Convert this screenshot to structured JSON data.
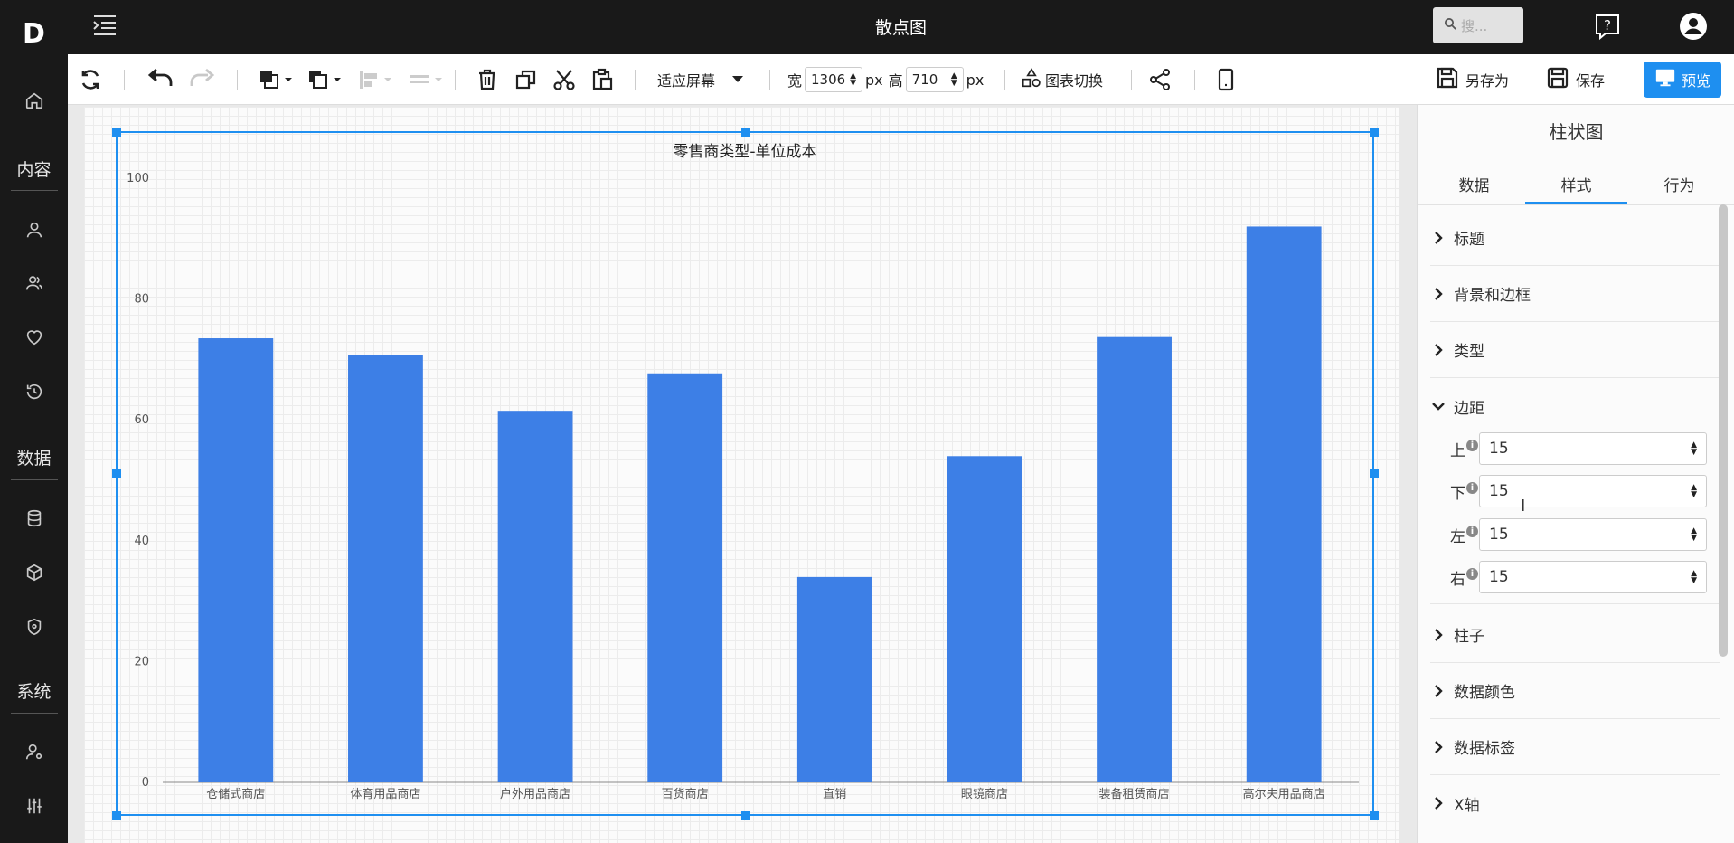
{
  "app": {
    "logo_text": "D",
    "title": "散点图",
    "search_placeholder": "搜..."
  },
  "sidebar": {
    "sections": [
      {
        "label": "内容"
      },
      {
        "label": "数据"
      },
      {
        "label": "系统"
      }
    ],
    "icons": [
      "home-icon",
      "user-icon",
      "users-icon",
      "heart-icon",
      "history-icon",
      "database-icon",
      "cube-icon",
      "shield-icon",
      "user-settings-icon",
      "sliders-icon"
    ]
  },
  "toolbar": {
    "fit_label": "适应屏幕",
    "width_label": "宽",
    "width_value": "1306",
    "height_label": "高",
    "height_value": "710",
    "unit": "px",
    "switch_chart_label": "图表切换",
    "save_as_label": "另存为",
    "save_label": "保存",
    "preview_label": "预览"
  },
  "panel": {
    "title": "柱状图",
    "tabs": [
      {
        "label": "数据",
        "active": false
      },
      {
        "label": "样式",
        "active": true
      },
      {
        "label": "行为",
        "active": false
      }
    ],
    "sections_top": [
      {
        "label": "标题"
      },
      {
        "label": "背景和边框"
      },
      {
        "label": "类型"
      }
    ],
    "margin_section": {
      "label": "边距",
      "fields": [
        {
          "label": "上",
          "value": "15"
        },
        {
          "label": "下",
          "value": "15"
        },
        {
          "label": "左",
          "value": "15"
        },
        {
          "label": "右",
          "value": "15"
        }
      ]
    },
    "sections_bottom": [
      {
        "label": "柱子"
      },
      {
        "label": "数据颜色"
      },
      {
        "label": "数据标签"
      },
      {
        "label": "X轴"
      }
    ]
  },
  "chart_data": {
    "type": "bar",
    "title": "零售商类型-单位成本",
    "categories": [
      "仓储式商店",
      "体育用品商店",
      "户外用品商店",
      "百货商店",
      "直销",
      "眼镜商店",
      "装备租赁商店",
      "高尔夫用品商店"
    ],
    "values": [
      73.5,
      70.8,
      61.5,
      67.7,
      34,
      54,
      73.7,
      92
    ],
    "ylim": [
      0,
      100
    ],
    "yticks": [
      0,
      20,
      40,
      60,
      80,
      100
    ],
    "bar_color": "#3d7fe6",
    "grid": false
  },
  "colors": {
    "accent": "#1e8ff0",
    "dark_bg": "#191919"
  }
}
